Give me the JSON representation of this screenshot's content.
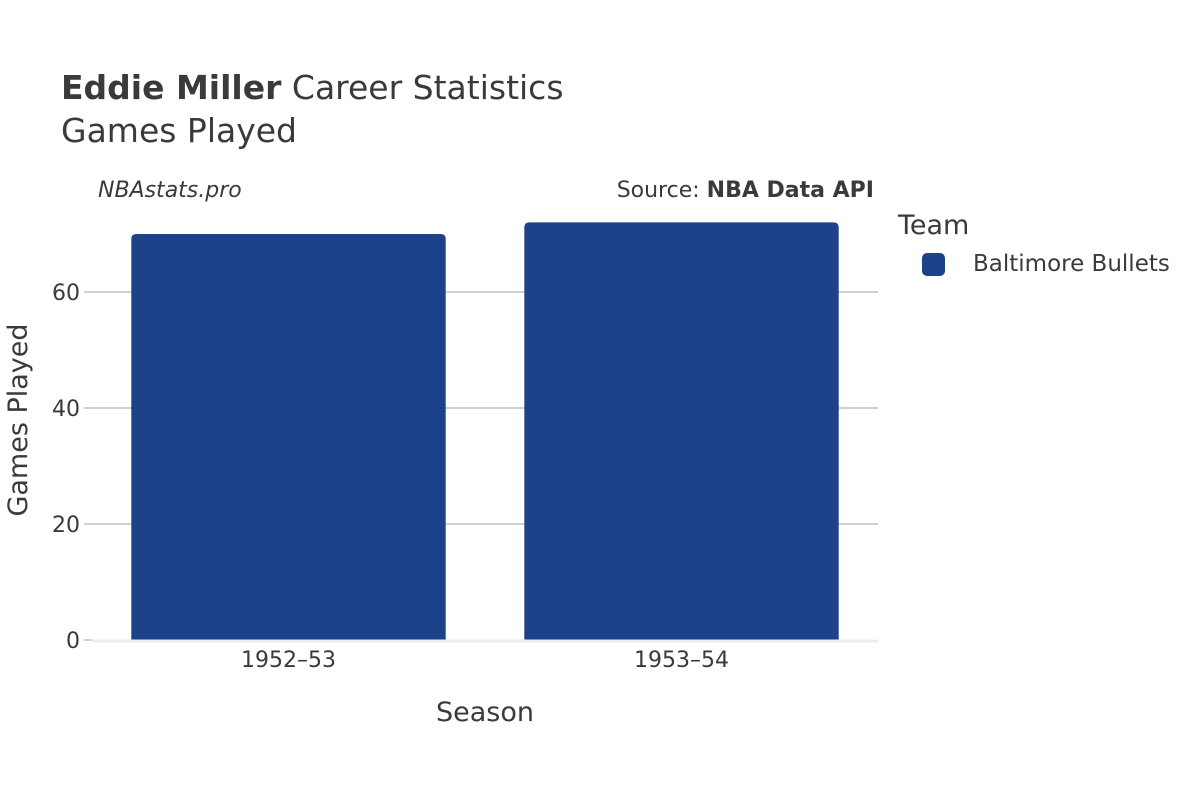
{
  "header": {
    "title_bold": "Eddie Miller",
    "title_rest": " Career Statistics",
    "subtitle": "Games Played"
  },
  "watermark": "NBAstats.pro",
  "source": {
    "prefix": "Source: ",
    "name": "NBA Data API"
  },
  "legend": {
    "title": "Team",
    "items": [
      {
        "label": "Baltimore Bullets",
        "color": "#1d4289"
      }
    ]
  },
  "chart_data": {
    "type": "bar",
    "categories": [
      "1952–53",
      "1953–54"
    ],
    "series": [
      {
        "name": "Baltimore Bullets",
        "values": [
          70,
          72
        ],
        "color": "#1d4289"
      }
    ],
    "xlabel": "Season",
    "ylabel": "Games Played",
    "ylim": [
      0,
      75
    ],
    "yticks": [
      0,
      20,
      40,
      60
    ],
    "grid": true,
    "legend_position": "right"
  }
}
